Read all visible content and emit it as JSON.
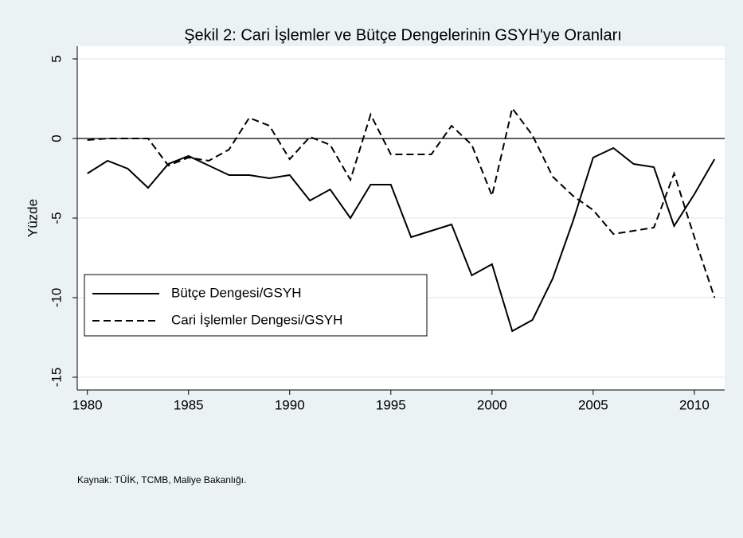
{
  "chart_data": {
    "type": "line",
    "title": "Şekil 2: Cari İşlemler ve Bütçe Dengelerinin GSYH'ye Oranları",
    "ylabel": "Yüzde",
    "source": "Kaynak: TÜİK, TCMB, Maliye Bakanlığı.",
    "x": [
      1980,
      1981,
      1982,
      1983,
      1984,
      1985,
      1986,
      1987,
      1988,
      1989,
      1990,
      1991,
      1992,
      1993,
      1994,
      1995,
      1996,
      1997,
      1998,
      1999,
      2000,
      2001,
      2002,
      2003,
      2004,
      2005,
      2006,
      2007,
      2008,
      2009,
      2010,
      2011
    ],
    "series": [
      {
        "name": "Bütçe Dengesi/GSYH",
        "color": "#000000",
        "dash": "solid",
        "values": [
          -2.2,
          -1.4,
          -1.9,
          -3.1,
          -1.6,
          -1.1,
          -1.7,
          -2.3,
          -2.3,
          -2.5,
          -2.3,
          -3.9,
          -3.2,
          -5.0,
          -2.9,
          -2.9,
          -6.2,
          -5.8,
          -5.4,
          -8.6,
          -7.9,
          -12.1,
          -11.4,
          -8.8,
          -5.2,
          -1.2,
          -0.6,
          -1.6,
          -1.8,
          -5.5,
          -3.5,
          -1.3
        ]
      },
      {
        "name": "Cari İşlemler Dengesi/GSYH",
        "color": "#000000",
        "dash": "dashed",
        "values": [
          -0.1,
          0.0,
          0.0,
          0.0,
          -1.7,
          -1.2,
          -1.4,
          -0.7,
          1.3,
          0.8,
          -1.3,
          0.1,
          -0.4,
          -2.6,
          1.5,
          -1.0,
          -1.0,
          -1.0,
          0.8,
          -0.4,
          -3.6,
          1.9,
          0.2,
          -2.4,
          -3.6,
          -4.5,
          -6.0,
          -5.8,
          -5.6,
          -2.2,
          -6.2,
          -10.0
        ]
      }
    ],
    "xlim": [
      1979.5,
      2011.5
    ],
    "xticks": [
      1980,
      1985,
      1990,
      1995,
      2000,
      2005,
      2010
    ],
    "ylim": [
      -15.8,
      5.8
    ],
    "yticks": [
      -15,
      -10,
      -5,
      0,
      5
    ],
    "hline": 0,
    "grid": true,
    "legend": "lower left"
  }
}
